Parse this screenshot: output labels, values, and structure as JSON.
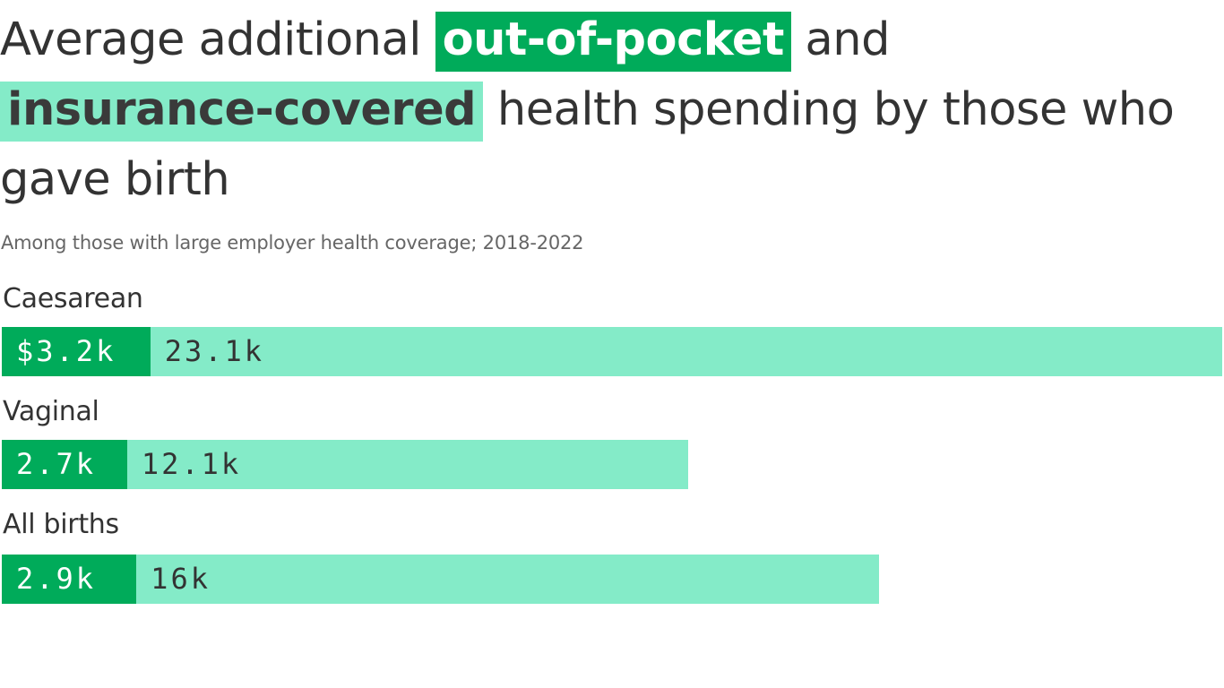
{
  "title": {
    "prefix": "Average additional",
    "highlight_out_of_pocket": "out-of-pocket",
    "middle": "and",
    "highlight_insurance": "insurance-covered",
    "suffix": "health spending by those who gave birth"
  },
  "subtitle": "Among those with large employer health coverage; 2018-2022",
  "colors": {
    "out_of_pocket": "#00ab5a",
    "insurance_covered": "#84ebc8",
    "text": "#333333"
  },
  "chart_data": {
    "type": "bar",
    "orientation": "horizontal",
    "stacked": true,
    "title": "Average additional out-of-pocket and insurance-covered health spending by those who gave birth",
    "subtitle": "Among those with large employer health coverage; 2018-2022",
    "categories": [
      "Caesarean",
      "Vaginal",
      "All births"
    ],
    "series": [
      {
        "name": "out-of-pocket",
        "values": [
          3.2,
          2.7,
          2.9
        ],
        "labels": [
          "$3.2k",
          "2.7k",
          "2.9k"
        ]
      },
      {
        "name": "insurance-covered",
        "values": [
          23.1,
          12.1,
          16
        ],
        "labels": [
          "23.1k",
          "12.1k",
          "16k"
        ]
      }
    ],
    "units": "thousands of dollars",
    "xlim": [
      0,
      26.3
    ],
    "grid": false,
    "legend": "in title"
  }
}
